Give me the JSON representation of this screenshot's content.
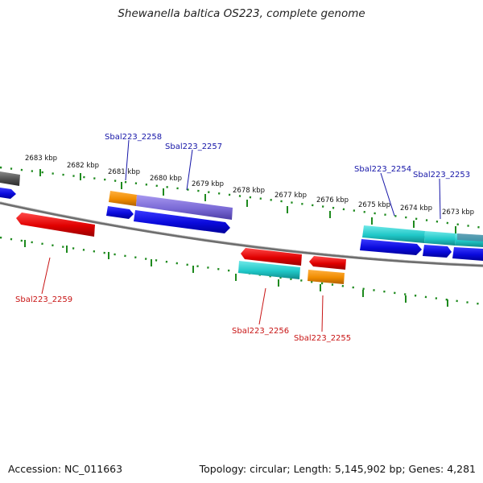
{
  "title": "Shewanella baltica OS223, complete genome",
  "footer": {
    "accession": "Accession: NC_011663",
    "summary": "Topology: circular; Length: 5,145,902 bp; Genes: 4,281"
  },
  "colors": {
    "backbone": "#6e6e6e",
    "tick_ring": "#1e8a1e",
    "forward_label": "#1515a8",
    "reverse_label": "#c81414",
    "blue_gene": "#0a0adc",
    "red_gene": "#e00000",
    "orange_gene": "#f08c00",
    "cyan_gene": "#20c8c8",
    "purple_gene": "#7a6ad6",
    "gray_gene": "#505050"
  },
  "kbp_labels": [
    "2683 kbp",
    "2682 kbp",
    "2681 kbp",
    "2680 kbp",
    "2679 kbp",
    "2678 kbp",
    "2677 kbp",
    "2676 kbp",
    "2675 kbp",
    "2674 kbp",
    "2673 kbp"
  ],
  "gene_labels": {
    "sbal2258": "Sbal223_2258",
    "sbal2257": "Sbal223_2257",
    "sbal2254": "Sbal223_2254",
    "sbal2253": "Sbal223_2253",
    "sbal2259": "Sbal223_2259",
    "sbal2256": "Sbal223_2256",
    "sbal2255": "Sbal223_2255"
  }
}
